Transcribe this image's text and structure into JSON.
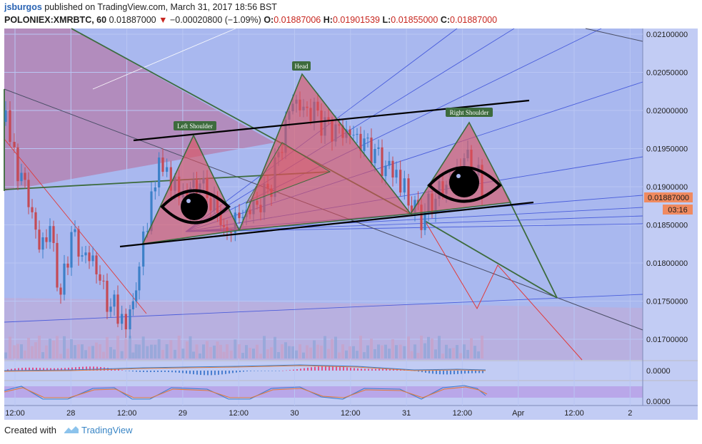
{
  "header": {
    "username": "jsburgos",
    "published_text": "published on TradingView.com, March 31, 2017 18:56 BST",
    "symbol": "POLONIEX:XMRBTC, 60",
    "last": "0.01887000",
    "change_arrow": "▼",
    "change": "−0.00020800 (−1.09%)",
    "o_label": "O:",
    "o_value": "0.01887006",
    "h_label": "H:",
    "h_value": "0.01901539",
    "l_label": "L:",
    "l_value": "0.01855000",
    "c_label": "C:",
    "c_value": "0.01887000"
  },
  "footer": {
    "created_with": "Created with",
    "brand": "TradingView"
  },
  "colors": {
    "up": "#3c80c8",
    "down": "#c44a55",
    "bg_chart": "#a9b8ef",
    "axis_bg": "#c2ccf4",
    "pattern_fill": "#e0505a",
    "neckline": "#000000",
    "price_badge": "#f08a60"
  },
  "annotations": {
    "left_shoulder": "Left Shoulder",
    "head": "Head",
    "right_shoulder": "Right Shoulder"
  },
  "chart_data": {
    "type": "candlestick",
    "title": "POLONIEX:XMRBTC, 60",
    "price_axis": {
      "ticks": [
        "0.02100000",
        "0.02050000",
        "0.02000000",
        "0.01950000",
        "0.01900000",
        "0.01850000",
        "0.01800000",
        "0.01750000",
        "0.01700000"
      ],
      "ylim": [
        0.01665,
        0.02105
      ]
    },
    "current_price_label": "0.01887000",
    "countdown_label": "03:16",
    "time_axis": [
      "12:00",
      "28",
      "12:00",
      "29",
      "12:00",
      "30",
      "12:00",
      "31",
      "12:00",
      "Apr",
      "12:00",
      "2"
    ],
    "macd_axis_label": "0.0000",
    "stoch_axis_label": "0.0000",
    "patterns": [
      "Left Shoulder",
      "Head",
      "Right Shoulder"
    ]
  }
}
